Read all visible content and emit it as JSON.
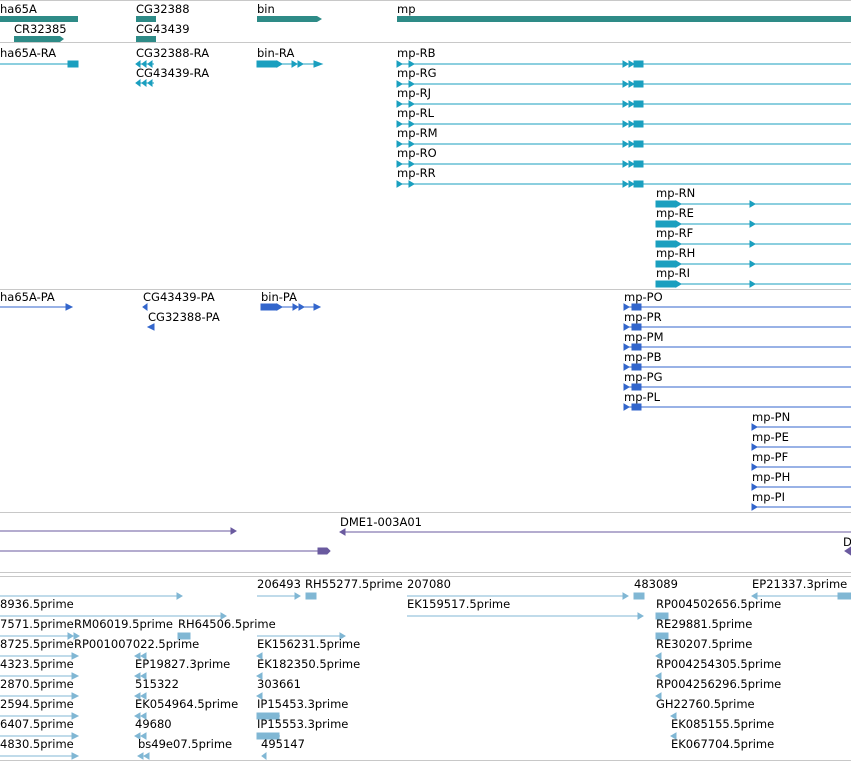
{
  "colors": {
    "gene": "#2e8b87",
    "transcript": "#1a9fbf",
    "protein": "#3366cc",
    "other": "#6a5a9f",
    "est": "#80b7d4",
    "separator": "#c8c8c8"
  },
  "genes": {
    "labels": [
      "ha65A",
      "CR32385",
      "CG32388",
      "CG43439",
      "bin",
      "mp"
    ]
  },
  "transcripts": {
    "labels": [
      "ha65A-RA",
      "CG32388-RA",
      "CG43439-RA",
      "bin-RA",
      "mp-RB",
      "mp-RG",
      "mp-RJ",
      "mp-RL",
      "mp-RM",
      "mp-RO",
      "mp-RR",
      "mp-RN",
      "mp-RE",
      "mp-RF",
      "mp-RH",
      "mp-RI"
    ]
  },
  "proteins": {
    "labels": [
      "ha65A-PA",
      "CG43439-PA",
      "CG32388-PA",
      "bin-PA",
      "mp-PO",
      "mp-PR",
      "mp-PM",
      "mp-PB",
      "mp-PG",
      "mp-PL",
      "mp-PN",
      "mp-PE",
      "mp-PF",
      "mp-PH",
      "mp-PI"
    ]
  },
  "other_features": {
    "labels": [
      "DME1-003A01",
      "D"
    ]
  },
  "ests": {
    "labels": [
      "206493",
      "RH55277.5prime",
      "207080",
      "483089",
      "EP21337.3prime",
      "8936.5prime",
      "EK159517.5prime",
      "RP004502656.5prime",
      "7571.5prime",
      "RM06019.5prime",
      "RH64506.5prime",
      "RE29881.5prime",
      "8725.5prime",
      "RP001007022.5prime",
      "EK156231.5prime",
      "RE30207.5prime",
      "4323.5prime",
      "EP19827.3prime",
      "EK182350.5prime",
      "RP004254305.5prime",
      "2870.5prime",
      "515322",
      "303661",
      "RP004256296.5prime",
      "2594.5prime",
      "EK054964.5prime",
      "IP15453.3prime",
      "GH22760.5prime",
      "6407.5prime",
      "49680",
      "IP15553.3prime",
      "EK085155.5prime",
      "4830.5prime",
      "bs49e07.5prime",
      "495147",
      "EK067704.5prime"
    ]
  }
}
